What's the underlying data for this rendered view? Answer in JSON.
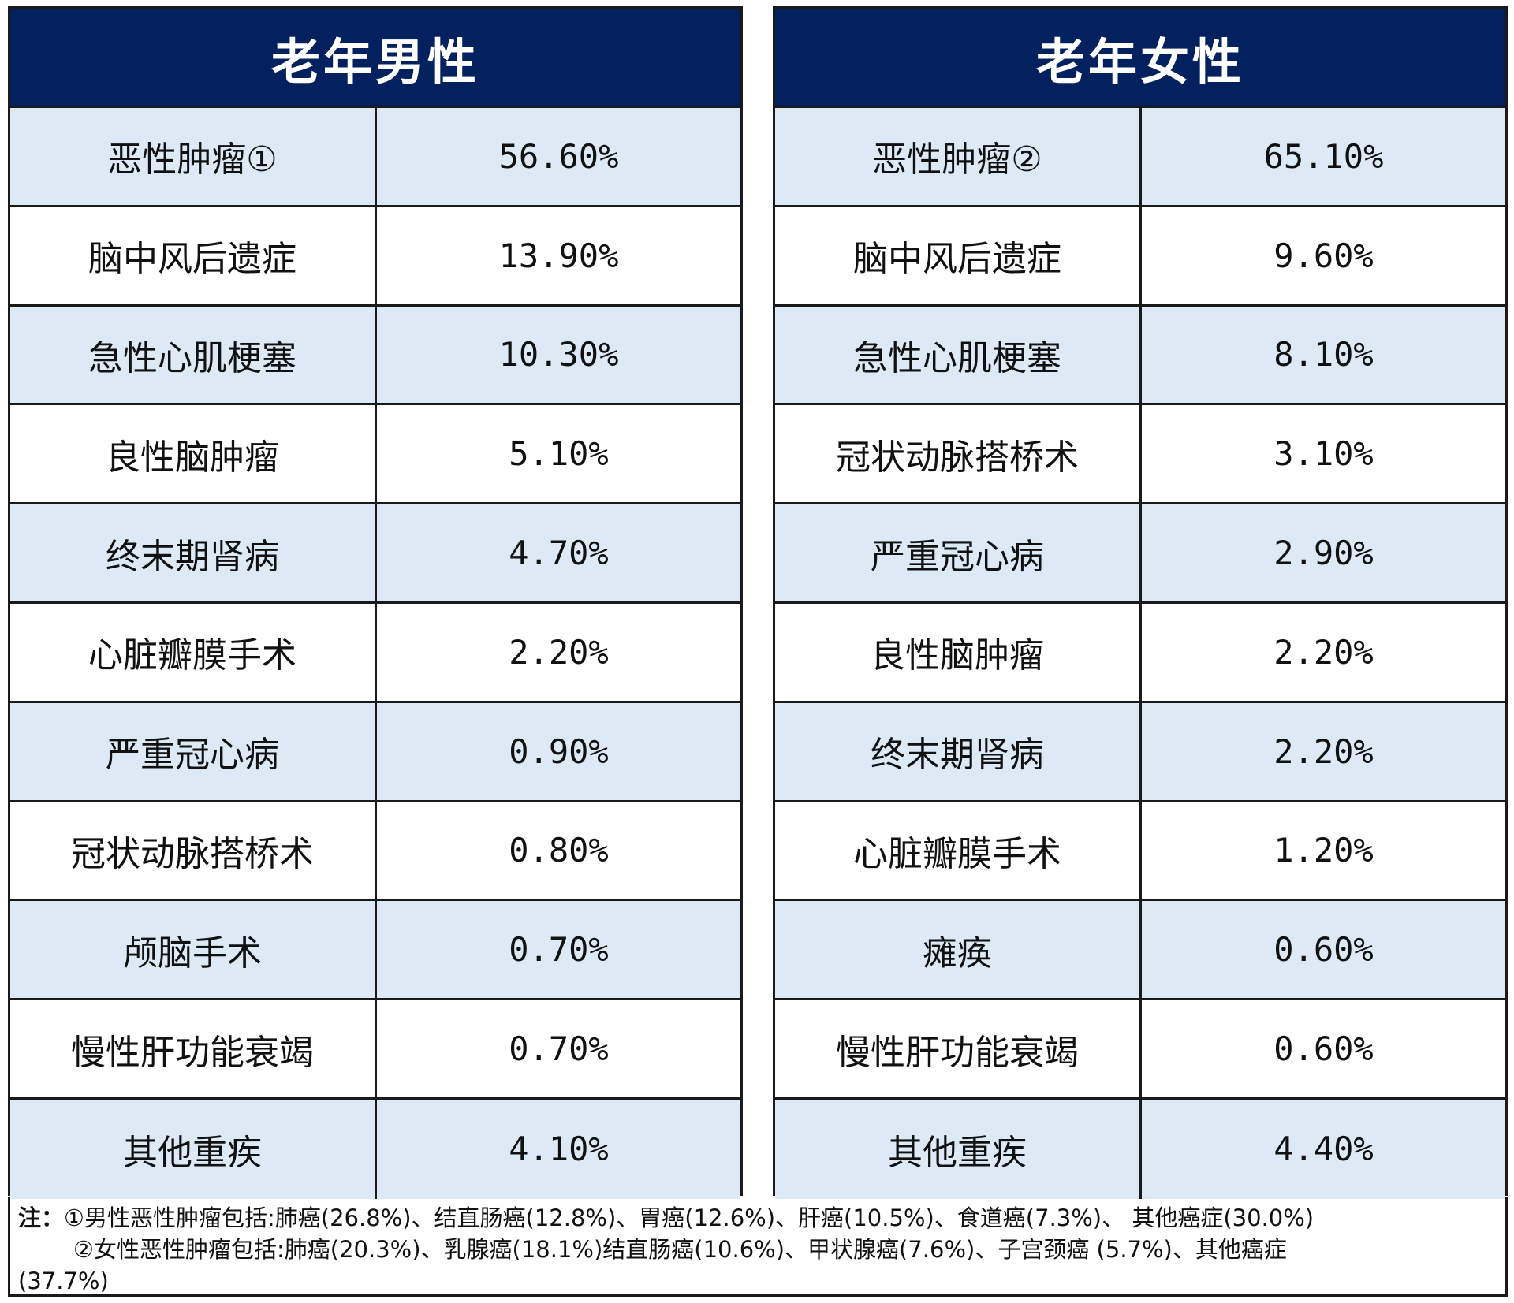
{
  "male": {
    "title": "老年男性",
    "rows": [
      {
        "name": "恶性肿瘤①",
        "pct": "56.60%"
      },
      {
        "name": "脑中风后遗症",
        "pct": "13.90%"
      },
      {
        "name": "急性心肌梗塞",
        "pct": "10.30%"
      },
      {
        "name": "良性脑肿瘤",
        "pct": "5.10%"
      },
      {
        "name": "终末期肾病",
        "pct": "4.70%"
      },
      {
        "name": "心脏瓣膜手术",
        "pct": "2.20%"
      },
      {
        "name": "严重冠心病",
        "pct": "0.90%"
      },
      {
        "name": "冠状动脉搭桥术",
        "pct": "0.80%"
      },
      {
        "name": "颅脑手术",
        "pct": "0.70%"
      },
      {
        "name": "慢性肝功能衰竭",
        "pct": "0.70%"
      },
      {
        "name": "其他重疾",
        "pct": "4.10%"
      }
    ]
  },
  "female": {
    "title": "老年女性",
    "rows": [
      {
        "name": "恶性肿瘤②",
        "pct": "65.10%"
      },
      {
        "name": "脑中风后遗症",
        "pct": "9.60%"
      },
      {
        "name": "急性心肌梗塞",
        "pct": "8.10%"
      },
      {
        "name": "冠状动脉搭桥术",
        "pct": "3.10%"
      },
      {
        "name": "严重冠心病",
        "pct": "2.90%"
      },
      {
        "name": "良性脑肿瘤",
        "pct": "2.20%"
      },
      {
        "name": "终末期肾病",
        "pct": "2.20%"
      },
      {
        "name": "心脏瓣膜手术",
        "pct": "1.20%"
      },
      {
        "name": "瘫痪",
        "pct": "0.60%"
      },
      {
        "name": "慢性肝功能衰竭",
        "pct": "0.60%"
      },
      {
        "name": "其他重疾",
        "pct": "4.40%"
      }
    ]
  },
  "notes": {
    "label": "注：",
    "line1": "①男性恶性肿瘤包括:肺癌(26.8%)、结直肠癌(12.8%)、胃癌(12.6%)、肝癌(10.5%)、食道癌(7.3%)、 其他癌症(30.0%)",
    "line2": "②女性恶性肿瘤包括:肺癌(20.3%)、乳腺癌(18.1%)结直肠癌(10.6%)、甲状腺癌(7.6%)、子宫颈癌 (5.7%)、其他癌症",
    "line3": "(37.7%)"
  }
}
